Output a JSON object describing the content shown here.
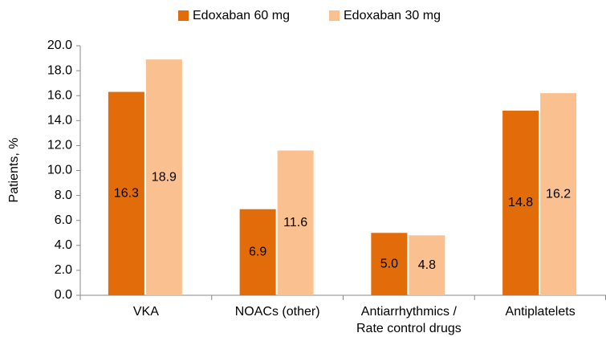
{
  "chart_data": {
    "type": "bar",
    "y_label": "Patients, %",
    "categories": [
      "VKA",
      "NOACs (other)",
      "Antiarrhythmics /\nRate control drugs",
      "Antiplatelets"
    ],
    "series": [
      {
        "name": "Edoxaban 60 mg",
        "color": "#e36c0a",
        "values": [
          16.3,
          6.9,
          5.0,
          14.8
        ],
        "value_labels": [
          "16.3",
          "6.9",
          "5.0",
          "14.8"
        ]
      },
      {
        "name": "Edoxaban 30 mg",
        "color": "#fac090",
        "values": [
          18.9,
          11.6,
          4.8,
          16.2
        ],
        "value_labels": [
          "18.9",
          "11.6",
          "4.8",
          "16.2"
        ]
      }
    ],
    "ylim": [
      0,
      20
    ],
    "yticks": [
      {
        "value": 0,
        "label": "0.0"
      },
      {
        "value": 2,
        "label": "2.0"
      },
      {
        "value": 4,
        "label": "4.0"
      },
      {
        "value": 6,
        "label": "6.0"
      },
      {
        "value": 8,
        "label": "8.0"
      },
      {
        "value": 10,
        "label": "10.0"
      },
      {
        "value": 12,
        "label": "12.0"
      },
      {
        "value": 14,
        "label": "14.0"
      },
      {
        "value": 16,
        "label": "16.0"
      },
      {
        "value": 18,
        "label": "18.0"
      },
      {
        "value": 20,
        "label": "20.0"
      }
    ],
    "legend": "top"
  }
}
